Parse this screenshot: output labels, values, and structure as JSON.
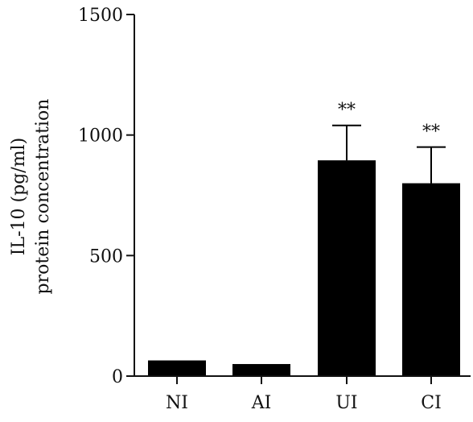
{
  "chart_data": {
    "type": "bar",
    "categories": [
      "NI",
      "AI",
      "UI",
      "CI"
    ],
    "values": [
      65,
      50,
      895,
      800
    ],
    "error_upper": [
      0,
      0,
      1040,
      950
    ],
    "significance": [
      "",
      "",
      "**",
      "**"
    ],
    "ylabel_lines": [
      "IL-10 (pg/ml)",
      "protein concentration"
    ],
    "ylim": [
      0,
      1500
    ],
    "yticks": [
      0,
      500,
      1000,
      1500
    ],
    "bar_color": "#000000",
    "grid": false
  }
}
